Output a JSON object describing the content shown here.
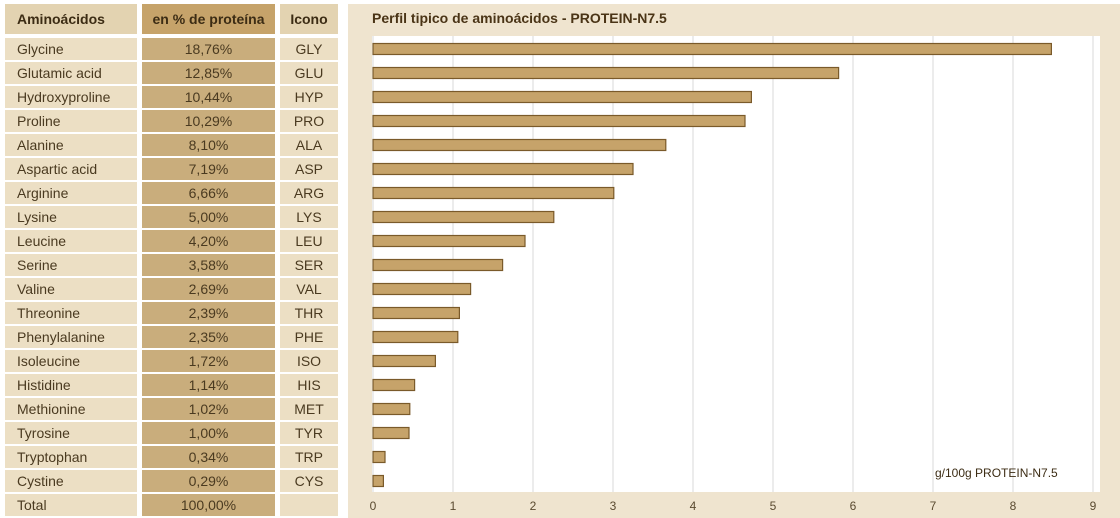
{
  "table": {
    "headers": {
      "name": "Aminoácidos",
      "percent": "en % de proteína",
      "code": "Icono"
    },
    "rows": [
      {
        "name": "Glycine",
        "percent": "18,76%",
        "code": "GLY"
      },
      {
        "name": "Glutamic acid",
        "percent": "12,85%",
        "code": "GLU"
      },
      {
        "name": "Hydroxyproline",
        "percent": "10,44%",
        "code": "HYP"
      },
      {
        "name": "Proline",
        "percent": "10,29%",
        "code": "PRO"
      },
      {
        "name": "Alanine",
        "percent": "8,10%",
        "code": "ALA"
      },
      {
        "name": "Aspartic acid",
        "percent": "7,19%",
        "code": "ASP"
      },
      {
        "name": "Arginine",
        "percent": "6,66%",
        "code": "ARG"
      },
      {
        "name": "Lysine",
        "percent": "5,00%",
        "code": "LYS"
      },
      {
        "name": "Leucine",
        "percent": "4,20%",
        "code": "LEU"
      },
      {
        "name": "Serine",
        "percent": "3,58%",
        "code": "SER"
      },
      {
        "name": "Valine",
        "percent": "2,69%",
        "code": "VAL"
      },
      {
        "name": "Threonine",
        "percent": "2,39%",
        "code": "THR"
      },
      {
        "name": "Phenylalanine",
        "percent": "2,35%",
        "code": "PHE"
      },
      {
        "name": "Isoleucine",
        "percent": "1,72%",
        "code": "ISO"
      },
      {
        "name": "Histidine",
        "percent": "1,14%",
        "code": "HIS"
      },
      {
        "name": "Methionine",
        "percent": "1,02%",
        "code": "MET"
      },
      {
        "name": "Tyrosine",
        "percent": "1,00%",
        "code": "TYR"
      },
      {
        "name": "Tryptophan",
        "percent": "0,34%",
        "code": "TRP"
      },
      {
        "name": "Cystine",
        "percent": "0,29%",
        "code": "CYS"
      }
    ],
    "total": {
      "name": "Total",
      "percent": "100,00%",
      "code": ""
    }
  },
  "chart_data": {
    "type": "bar",
    "orientation": "horizontal",
    "title": "Perfil tipico de aminoácidos - PROTEIN-N7.5",
    "unit_label": "g/100g PROTEIN-N7.5",
    "categories": [
      "GLY",
      "GLU",
      "HYP",
      "PRO",
      "ALA",
      "ASP",
      "ARG",
      "LYS",
      "LEU",
      "SER",
      "VAL",
      "THR",
      "PHE",
      "ISO",
      "HIS",
      "MET",
      "TYR",
      "TRP",
      "CYS"
    ],
    "values": [
      8.48,
      5.82,
      4.73,
      4.65,
      3.66,
      3.25,
      3.01,
      2.26,
      1.9,
      1.62,
      1.22,
      1.08,
      1.06,
      0.78,
      0.52,
      0.46,
      0.45,
      0.15,
      0.13
    ],
    "xlim": [
      0,
      9
    ],
    "x_ticks": [
      0,
      1,
      2,
      3,
      4,
      5,
      6,
      7,
      8,
      9
    ],
    "grid": true,
    "colors": {
      "bar_fill": "#c6a36a",
      "bar_stroke": "#7a5a2a",
      "grid": "#d9d9d9",
      "panel": "#efe4cf"
    }
  }
}
